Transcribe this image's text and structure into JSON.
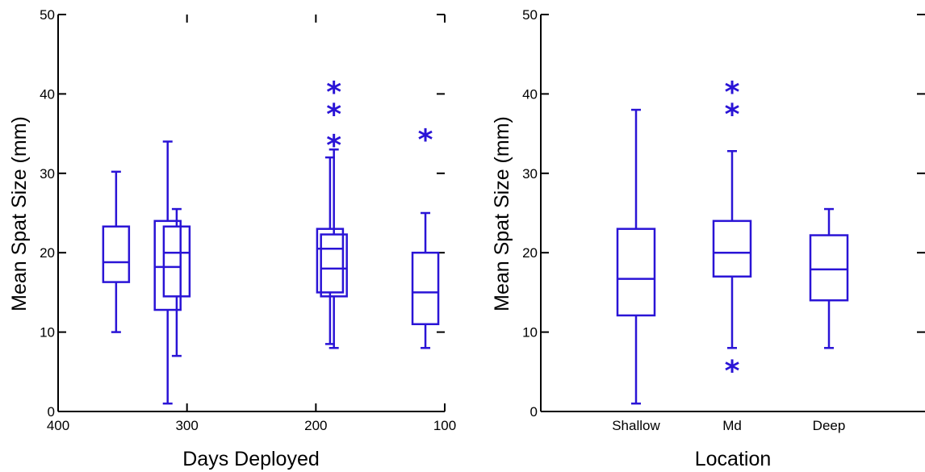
{
  "colors": {
    "box": "#2a14d6",
    "axis": "#000000",
    "background": "#ffffff"
  },
  "chart_data": [
    {
      "type": "box",
      "xlabel": "Days Deployed",
      "ylabel": "Mean Spat Size (mm)",
      "xlim": [
        400,
        100
      ],
      "ylim": [
        0,
        50
      ],
      "xticks": [
        400,
        300,
        200,
        100
      ],
      "yticks": [
        0,
        10,
        20,
        30,
        40,
        50
      ],
      "boxes": [
        {
          "x": 355,
          "min": 10,
          "q1": 16.3,
          "median": 18.8,
          "q3": 23.3,
          "max": 30.2,
          "outliers": []
        },
        {
          "x": 315,
          "min": 1,
          "q1": 12.8,
          "median": 18.2,
          "q3": 24,
          "max": 34,
          "outliers": []
        },
        {
          "x": 308,
          "min": 7,
          "q1": 14.5,
          "median": 20,
          "q3": 23.3,
          "max": 25.5,
          "outliers": []
        },
        {
          "x": 189,
          "min": 8.5,
          "q1": 15,
          "median": 20.5,
          "q3": 23,
          "max": 32,
          "outliers": []
        },
        {
          "x": 186,
          "min": 8,
          "q1": 14.5,
          "median": 18,
          "q3": 22.3,
          "max": 33,
          "outliers": [
            34.3,
            38.2,
            41
          ]
        },
        {
          "x": 115,
          "min": 8,
          "q1": 11,
          "median": 15,
          "q3": 20,
          "max": 25,
          "outliers": [
            35
          ]
        }
      ]
    },
    {
      "type": "box",
      "xlabel": "Location",
      "ylabel": "Mean Spat Size (mm)",
      "ylim": [
        0,
        50
      ],
      "yticks": [
        0,
        10,
        20,
        30,
        40,
        50
      ],
      "categories": [
        "Shallow",
        "Md",
        "Deep"
      ],
      "boxes": [
        {
          "category": "Shallow",
          "min": 1,
          "q1": 12.1,
          "median": 16.7,
          "q3": 23,
          "max": 38,
          "outliers": []
        },
        {
          "category": "Md",
          "min": 8,
          "q1": 17,
          "median": 20,
          "q3": 24,
          "max": 32.8,
          "outliers": [
            5.9,
            38.2,
            41
          ]
        },
        {
          "category": "Deep",
          "min": 8,
          "q1": 14,
          "median": 17.9,
          "q3": 22.2,
          "max": 25.5,
          "outliers": []
        }
      ]
    }
  ]
}
